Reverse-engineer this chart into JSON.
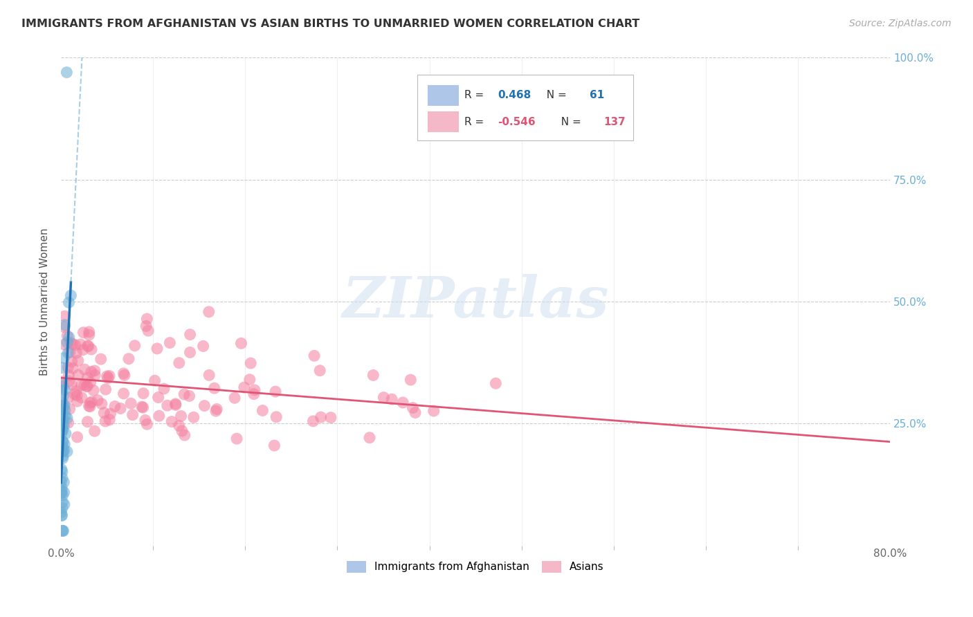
{
  "title": "IMMIGRANTS FROM AFGHANISTAN VS ASIAN BIRTHS TO UNMARRIED WOMEN CORRELATION CHART",
  "source": "Source: ZipAtlas.com",
  "ylabel": "Births to Unmarried Women",
  "xlim": [
    0.0,
    0.8
  ],
  "ylim": [
    0.0,
    1.0
  ],
  "blue_color": "#6baed6",
  "pink_color": "#f47fa0",
  "blue_line_color": "#2171b5",
  "pink_line_color": "#e05575",
  "blue_dash_color": "#6baed6",
  "watermark_text": "ZIPatlas",
  "watermark_color": "#d0dff0",
  "background_color": "#ffffff",
  "grid_color": "#cccccc",
  "right_ytick_color": "#6baed6",
  "title_color": "#333333",
  "source_color": "#aaaaaa",
  "legend_blue_text": "R =  0.468   N =  61",
  "legend_pink_text": "R = -0.546   N = 137",
  "legend_blue_value_color": "#2171b5",
  "legend_pink_value_color": "#e05575",
  "bottom_legend_blue": "Immigrants from Afghanistan",
  "bottom_legend_pink": "Asians"
}
